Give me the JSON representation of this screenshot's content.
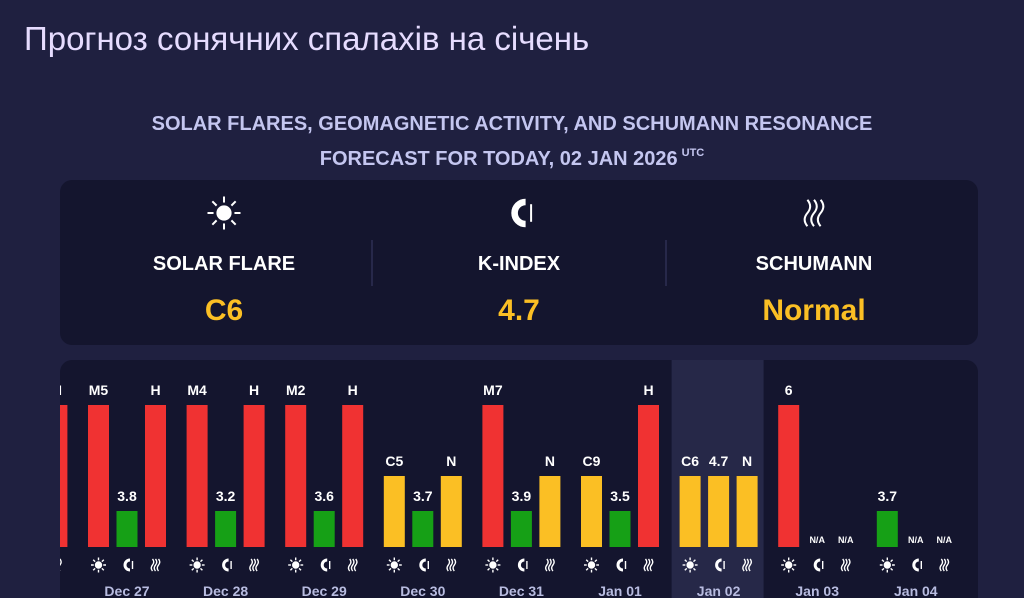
{
  "header": {
    "title": "Прогноз сонячних спалахів на січень"
  },
  "forecast": {
    "heading": "SOLAR FLARES, GEOMAGNETIC ACTIVITY, AND SCHUMANN RESONANCE FORECAST FOR TODAY, 02 JAN 2026",
    "utc": "UTC"
  },
  "summary": [
    {
      "label": "SOLAR FLARE",
      "value": "C6"
    },
    {
      "label": "K-INDEX",
      "value": "4.7"
    },
    {
      "label": "SCHUMANN",
      "value": "Normal"
    }
  ],
  "days": [
    {
      "date": null,
      "bars": [
        null,
        null,
        "H"
      ]
    },
    {
      "date": "Dec 27",
      "bars": [
        "M5",
        "3.8",
        "H"
      ]
    },
    {
      "date": "Dec 28",
      "bars": [
        "M4",
        "3.2",
        "H"
      ]
    },
    {
      "date": "Dec 29",
      "bars": [
        "M2",
        "3.6",
        "H"
      ]
    },
    {
      "date": "Dec 30",
      "bars": [
        "C5",
        "3.7",
        "N"
      ]
    },
    {
      "date": "Dec 31",
      "bars": [
        "M7",
        "3.9",
        "N"
      ]
    },
    {
      "date": "Jan 01",
      "bars": [
        "C9",
        "3.5",
        "H"
      ]
    },
    {
      "date": "Jan 02",
      "bars": [
        "C6",
        "4.7",
        "N"
      ],
      "highlight": true
    },
    {
      "date": "Jan 03",
      "bars": [
        "6",
        "N/A",
        "N/A"
      ]
    },
    {
      "date": "Jan 04",
      "bars": [
        "3.7",
        "N/A",
        "N/A"
      ]
    }
  ]
}
